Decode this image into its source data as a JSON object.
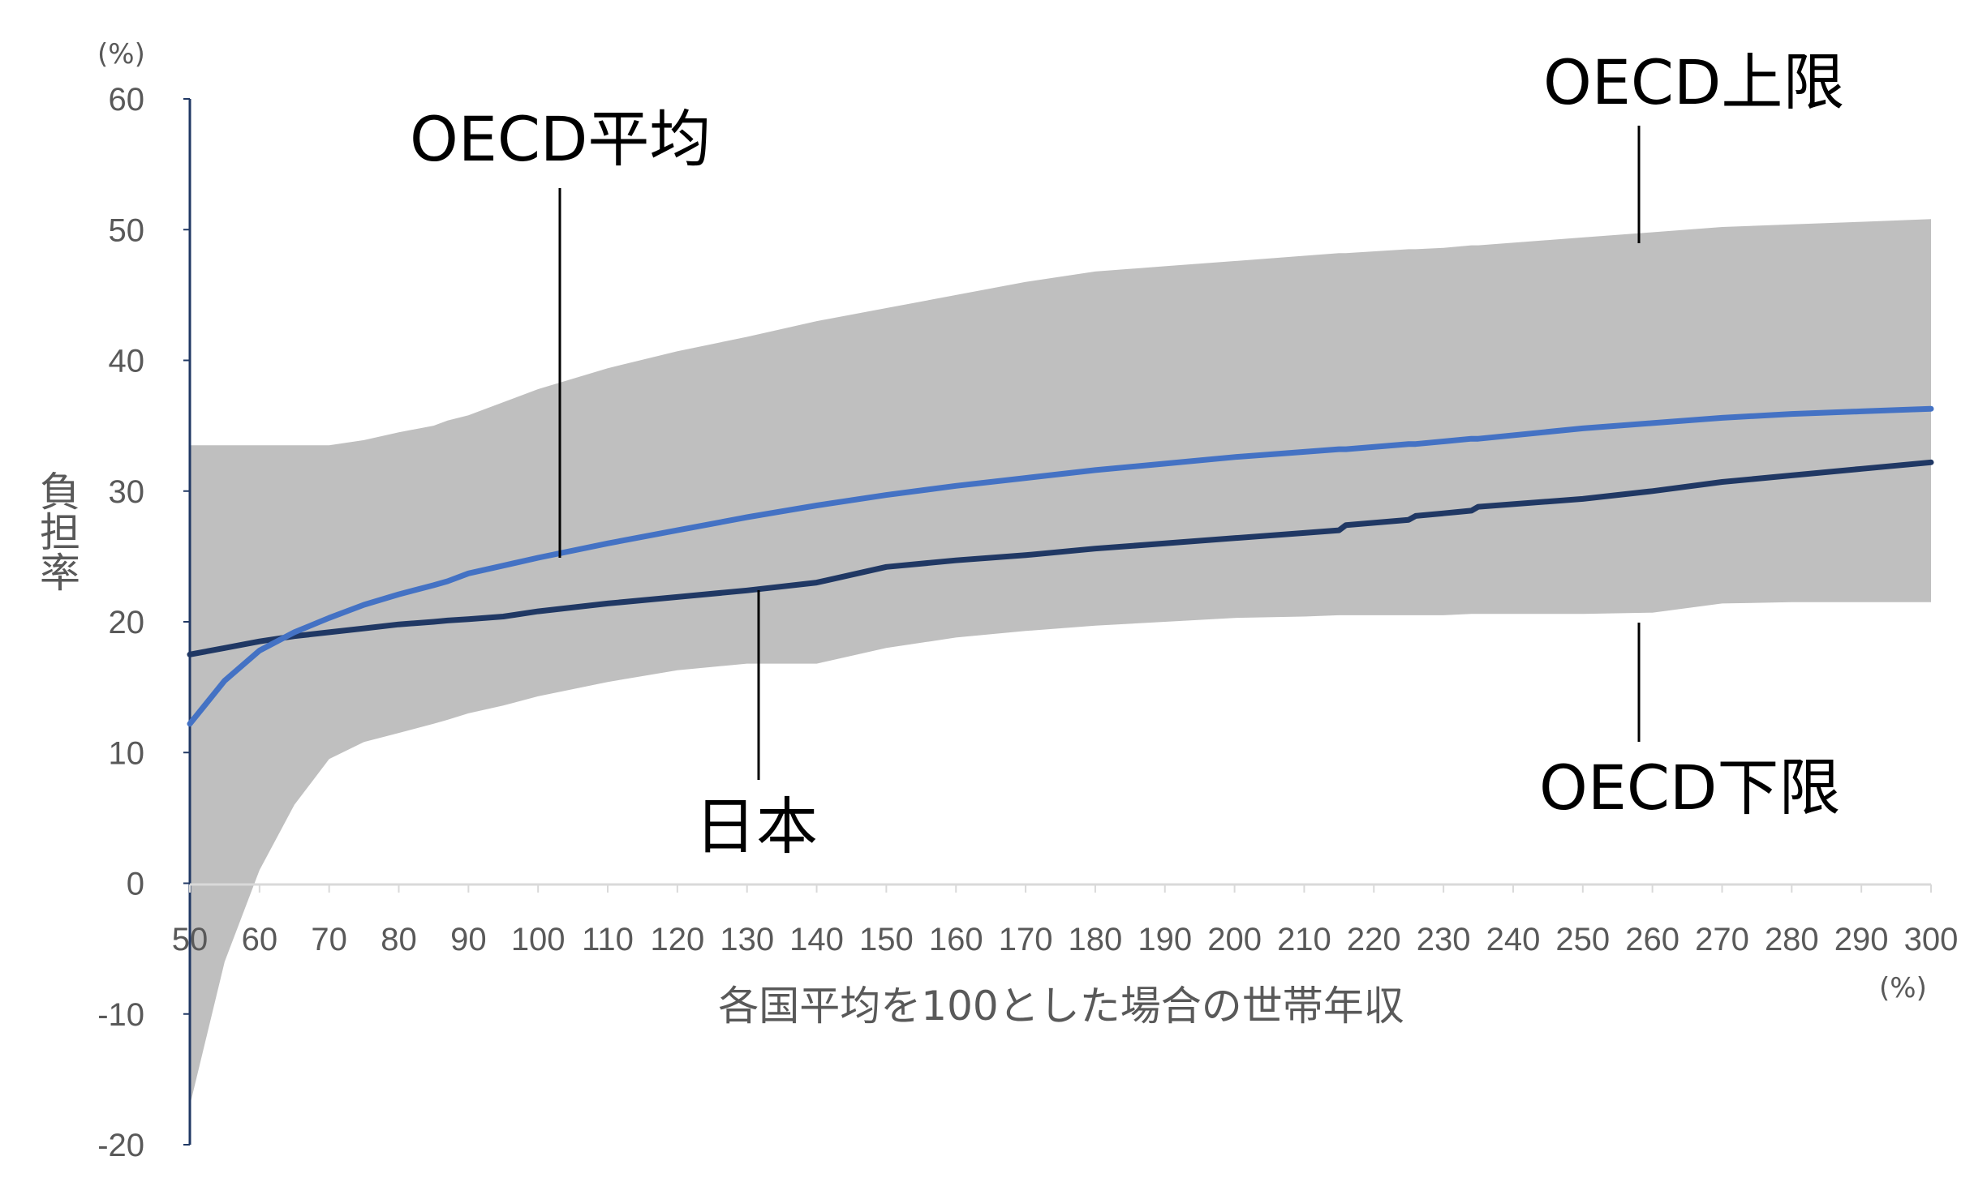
{
  "chart_data": {
    "type": "line",
    "title": "",
    "xlabel": "各国平均を100とした場合の世帯年収",
    "ylabel": "負担率",
    "x_unit": "(%)",
    "y_unit": "(%)",
    "xlim": [
      50,
      300
    ],
    "ylim": [
      -20,
      60
    ],
    "x_ticks": [
      "50",
      "60",
      "70",
      "80",
      "90",
      "100",
      "110",
      "120",
      "130",
      "140",
      "150",
      "160",
      "170",
      "180",
      "190",
      "200",
      "210",
      "220",
      "230",
      "240",
      "250",
      "260",
      "270",
      "280",
      "290",
      "300"
    ],
    "y_ticks": [
      "60",
      "50",
      "40",
      "30",
      "20",
      "10",
      "0",
      "-10",
      "-20"
    ],
    "x": [
      50,
      55,
      60,
      65,
      70,
      75,
      80,
      85,
      87,
      90,
      95,
      100,
      110,
      120,
      130,
      140,
      150,
      160,
      170,
      180,
      190,
      200,
      210,
      215,
      216,
      225,
      226,
      230,
      234,
      235,
      250,
      260,
      270,
      280,
      290,
      300
    ],
    "series": [
      {
        "name": "OECD平均",
        "color": "#4472c4",
        "values": [
          12.2,
          15.5,
          17.8,
          19.2,
          20.3,
          21.3,
          22.1,
          22.8,
          23.1,
          23.7,
          24.3,
          24.9,
          26.0,
          27.0,
          28.0,
          28.9,
          29.7,
          30.4,
          31.0,
          31.6,
          32.1,
          32.6,
          33.0,
          33.2,
          33.2,
          33.6,
          33.6,
          33.8,
          34.0,
          34.0,
          34.8,
          35.2,
          35.6,
          35.9,
          36.1,
          36.3
        ]
      },
      {
        "name": "日本",
        "color": "#203864",
        "values": [
          17.5,
          18.0,
          18.5,
          18.9,
          19.2,
          19.5,
          19.8,
          20.0,
          20.1,
          20.2,
          20.4,
          20.8,
          21.4,
          21.9,
          22.4,
          23.0,
          24.2,
          24.7,
          25.1,
          25.6,
          26.0,
          26.4,
          26.8,
          27.0,
          27.4,
          27.8,
          28.1,
          28.3,
          28.5,
          28.8,
          29.4,
          30.0,
          30.7,
          31.2,
          31.7,
          32.2
        ]
      },
      {
        "name": "OECD上限",
        "color": "#bfbfbf",
        "values": [
          33.5,
          33.5,
          33.5,
          33.5,
          33.5,
          33.9,
          34.5,
          35.0,
          35.4,
          35.8,
          36.8,
          37.8,
          39.4,
          40.7,
          41.8,
          43.0,
          44.0,
          45.0,
          46.0,
          46.8,
          47.2,
          47.6,
          48.0,
          48.2,
          48.2,
          48.5,
          48.5,
          48.6,
          48.8,
          48.8,
          49.4,
          49.8,
          50.2,
          50.4,
          50.6,
          50.8
        ]
      },
      {
        "name": "OECD下限",
        "color": "#bfbfbf",
        "values": [
          -17.0,
          -6.0,
          1.0,
          6.0,
          9.5,
          10.8,
          11.5,
          12.2,
          12.5,
          13.0,
          13.6,
          14.3,
          15.4,
          16.3,
          16.8,
          16.8,
          18.0,
          18.8,
          19.3,
          19.7,
          20.0,
          20.3,
          20.4,
          20.5,
          20.5,
          20.5,
          20.5,
          20.5,
          20.6,
          20.6,
          20.6,
          20.7,
          21.4,
          21.5,
          21.5,
          21.5
        ]
      }
    ],
    "callouts": {
      "avg": "OECD平均",
      "upper": "OECD上限",
      "lower": "OECD下限",
      "japan": "日本"
    },
    "grid": false,
    "legend": "none"
  }
}
